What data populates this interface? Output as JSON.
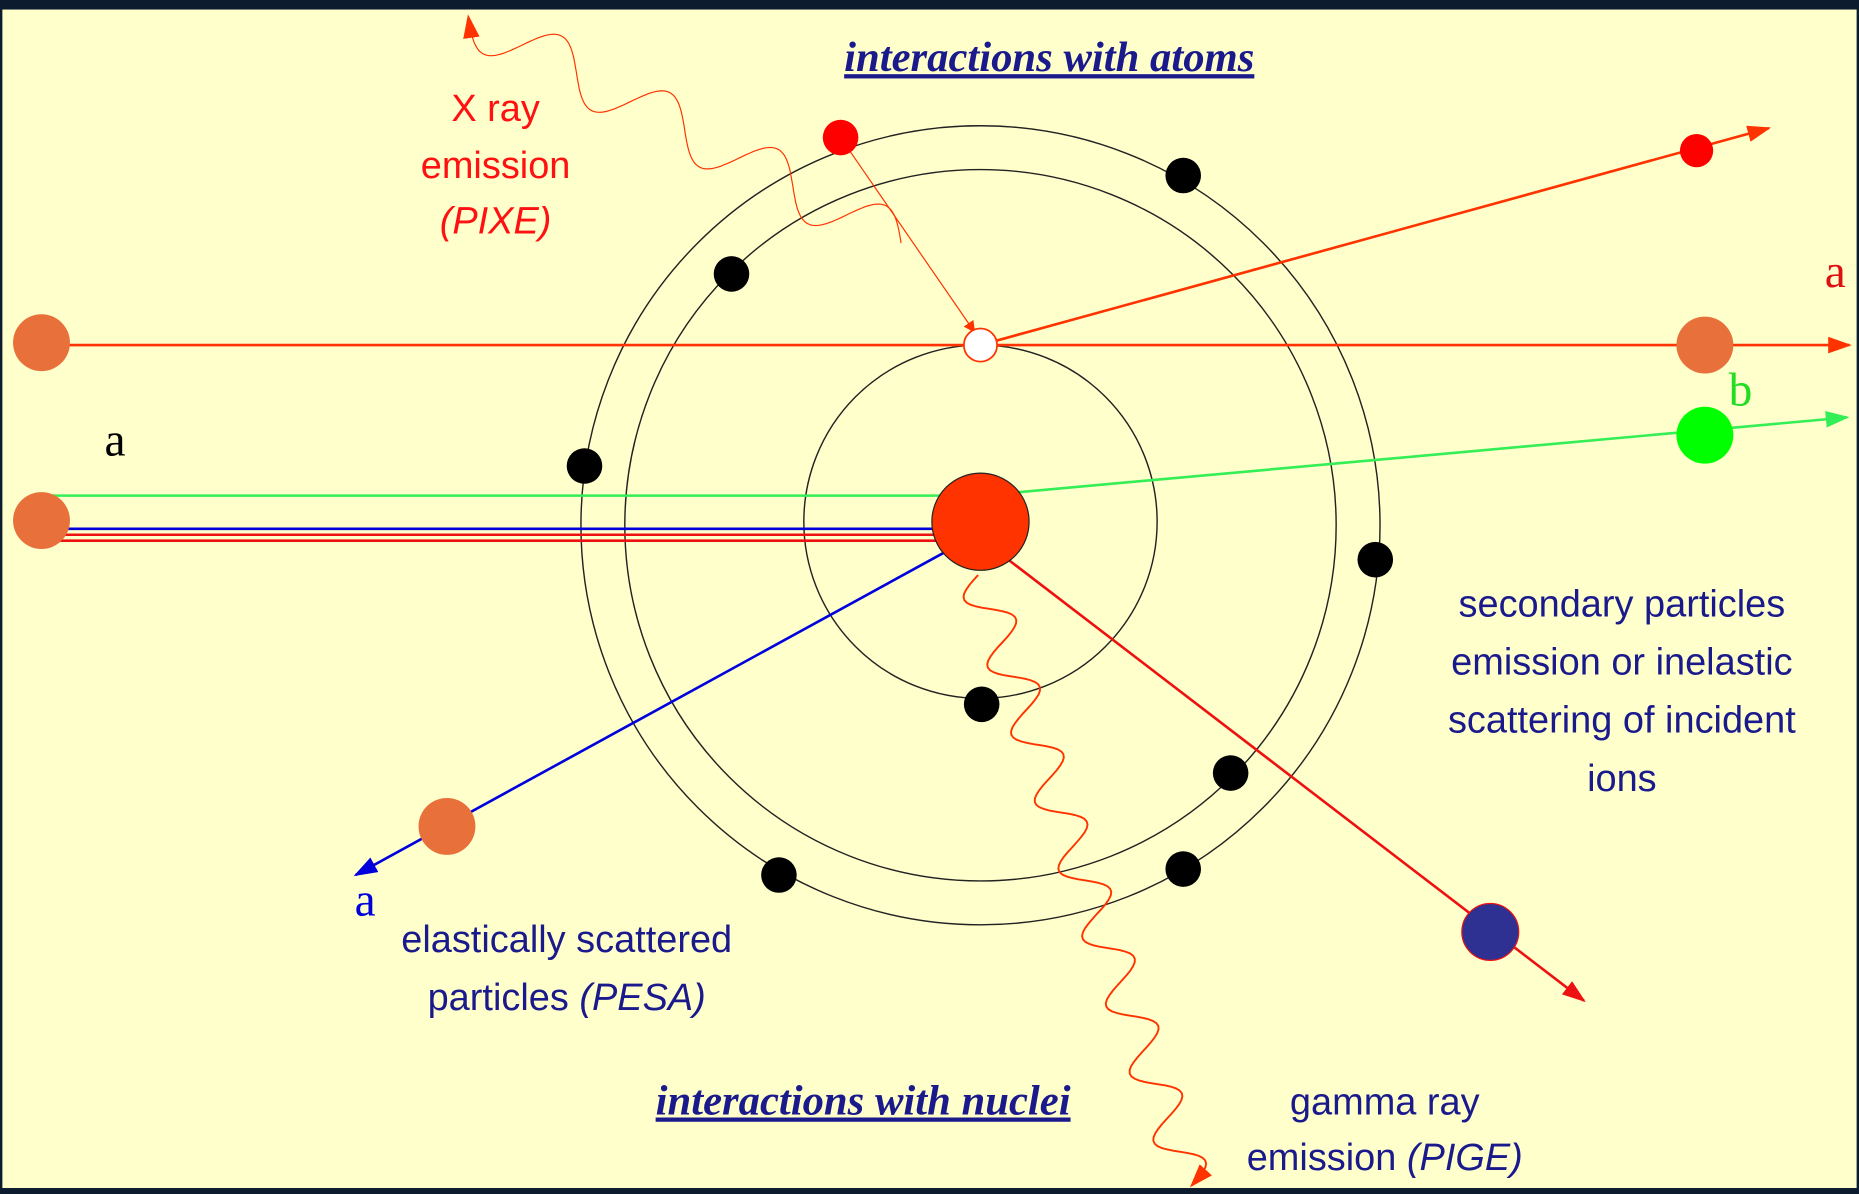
{
  "title_atoms": "interactions with atoms",
  "title_nuclei": "interactions with nuclei",
  "pixe": {
    "lines": [
      "X ray",
      "emission",
      "(PIXE)"
    ]
  },
  "secondary": {
    "lines": [
      "secondary particles",
      "emission or inelastic",
      "scattering of incident",
      "ions"
    ]
  },
  "pesa": {
    "line1": "elastically scattered",
    "line2": "particles",
    "abbr": "(PESA)"
  },
  "pige": {
    "line1": "gamma ray",
    "line2": "emission",
    "abbr": "(PIGE)"
  },
  "particle_labels": [
    "a",
    "b",
    "a",
    "a"
  ]
}
